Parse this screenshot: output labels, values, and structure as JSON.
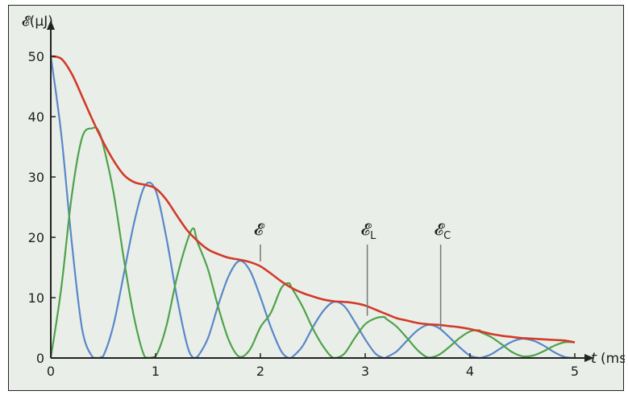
{
  "chart_data": {
    "type": "line",
    "xlabel_var": "t",
    "xlabel_unit": "(ms)",
    "ylabel": "𝓔(μJ)",
    "x_ticks": [
      "0",
      "1",
      "2",
      "3",
      "4",
      "5"
    ],
    "y_ticks": [
      "0",
      "10",
      "20",
      "30",
      "40",
      "50"
    ],
    "xlim": [
      0,
      5
    ],
    "ylim": [
      0,
      50
    ],
    "grid": false,
    "colors": {
      "total": "#d23a2a",
      "magnetic": "#5b86c9",
      "electric": "#4ea24a",
      "axis": "#222222",
      "background": "#e9efe8"
    },
    "annotations": [
      {
        "symbol": "𝓔",
        "subscript": "",
        "x": 2.0,
        "y": 16
      },
      {
        "symbol": "𝓔",
        "subscript": "L",
        "x": 3.02,
        "y": 7
      },
      {
        "symbol": "𝓔",
        "subscript": "C",
        "x": 3.72,
        "y": 4.8
      }
    ],
    "series": [
      {
        "id": "total",
        "x": [
          0,
          0.1,
          0.2,
          0.3,
          0.4,
          0.5,
          0.6,
          0.7,
          0.8,
          0.9,
          1.0,
          1.1,
          1.2,
          1.3,
          1.4,
          1.5,
          1.6,
          1.7,
          1.8,
          1.9,
          2.0,
          2.1,
          2.2,
          2.3,
          2.4,
          2.5,
          2.6,
          2.7,
          2.8,
          2.9,
          3.0,
          3.1,
          3.2,
          3.3,
          3.4,
          3.5,
          3.6,
          3.7,
          3.8,
          3.9,
          4.0,
          4.1,
          4.2,
          4.3,
          4.4,
          4.5,
          4.6,
          4.7,
          4.8,
          4.9,
          5.0
        ],
        "values": [
          50.0,
          49.6,
          47.1,
          43.3,
          39.4,
          35.8,
          32.7,
          30.3,
          29.1,
          28.7,
          28.1,
          26.3,
          23.7,
          21.2,
          19.4,
          18.0,
          17.2,
          16.6,
          16.3,
          15.9,
          15.2,
          14.0,
          12.7,
          11.6,
          10.8,
          10.2,
          9.7,
          9.4,
          9.3,
          9.1,
          8.7,
          8.0,
          7.3,
          6.6,
          6.2,
          5.8,
          5.6,
          5.5,
          5.3,
          5.1,
          4.8,
          4.4,
          4.0,
          3.7,
          3.5,
          3.3,
          3.2,
          3.1,
          3.0,
          2.9,
          2.6
        ]
      },
      {
        "id": "magnetic",
        "x": [
          0,
          0.1,
          0.2,
          0.3,
          0.4,
          0.45,
          0.5,
          0.6,
          0.7,
          0.8,
          0.9,
          1.0,
          1.1,
          1.2,
          1.3,
          1.36,
          1.4,
          1.5,
          1.6,
          1.7,
          1.8,
          1.9,
          2.0,
          2.1,
          2.2,
          2.27,
          2.3,
          2.4,
          2.5,
          2.6,
          2.7,
          2.8,
          2.9,
          3.0,
          3.1,
          3.18,
          3.2,
          3.3,
          3.4,
          3.5,
          3.6,
          3.7,
          3.8,
          3.9,
          4.0,
          4.09,
          4.1,
          4.2,
          4.3,
          4.4,
          4.5,
          4.6,
          4.7,
          4.8,
          4.9,
          5.0
        ],
        "values": [
          50.0,
          37.1,
          19.2,
          4.7,
          0.1,
          0.0,
          0.3,
          5.6,
          14.2,
          22.8,
          28.6,
          27.8,
          20.2,
          10.4,
          2.2,
          0.0,
          0.2,
          3.3,
          8.9,
          13.7,
          16.1,
          14.5,
          10.1,
          5.1,
          1.1,
          0.0,
          0.1,
          1.9,
          5.1,
          7.8,
          9.3,
          8.6,
          6.0,
          3.1,
          0.7,
          0.0,
          0.1,
          1.1,
          2.9,
          4.6,
          5.5,
          5.0,
          3.5,
          1.8,
          0.4,
          0.0,
          0.0,
          0.6,
          1.7,
          2.7,
          3.2,
          2.9,
          2.1,
          1.0,
          0.2,
          0.0
        ]
      },
      {
        "id": "electric",
        "x": [
          0,
          0.1,
          0.2,
          0.3,
          0.4,
          0.45,
          0.5,
          0.6,
          0.7,
          0.8,
          0.9,
          1.0,
          1.1,
          1.2,
          1.3,
          1.36,
          1.4,
          1.5,
          1.6,
          1.7,
          1.8,
          1.9,
          2.0,
          2.1,
          2.2,
          2.27,
          2.3,
          2.4,
          2.5,
          2.6,
          2.7,
          2.8,
          2.9,
          3.0,
          3.1,
          3.18,
          3.2,
          3.3,
          3.4,
          3.5,
          3.6,
          3.7,
          3.8,
          3.9,
          4.0,
          4.09,
          4.1,
          4.2,
          4.3,
          4.4,
          4.5,
          4.6,
          4.7,
          4.8,
          4.9,
          5.0
        ],
        "values": [
          0.0,
          11.6,
          26.9,
          36.6,
          38.1,
          37.8,
          35.3,
          27.3,
          16.1,
          6.3,
          0.1,
          0.3,
          5.1,
          13.1,
          19.3,
          21.5,
          19.2,
          14.7,
          8.3,
          2.9,
          0.2,
          1.4,
          5.1,
          7.5,
          11.6,
          12.4,
          11.6,
          8.6,
          4.9,
          1.9,
          0.0,
          0.7,
          3.3,
          5.6,
          6.6,
          6.8,
          6.5,
          5.2,
          3.3,
          1.3,
          0.1,
          0.5,
          1.8,
          3.3,
          4.4,
          4.6,
          4.3,
          3.5,
          2.3,
          1.0,
          0.3,
          0.4,
          1.1,
          2.0,
          2.6,
          2.6
        ]
      }
    ]
  }
}
